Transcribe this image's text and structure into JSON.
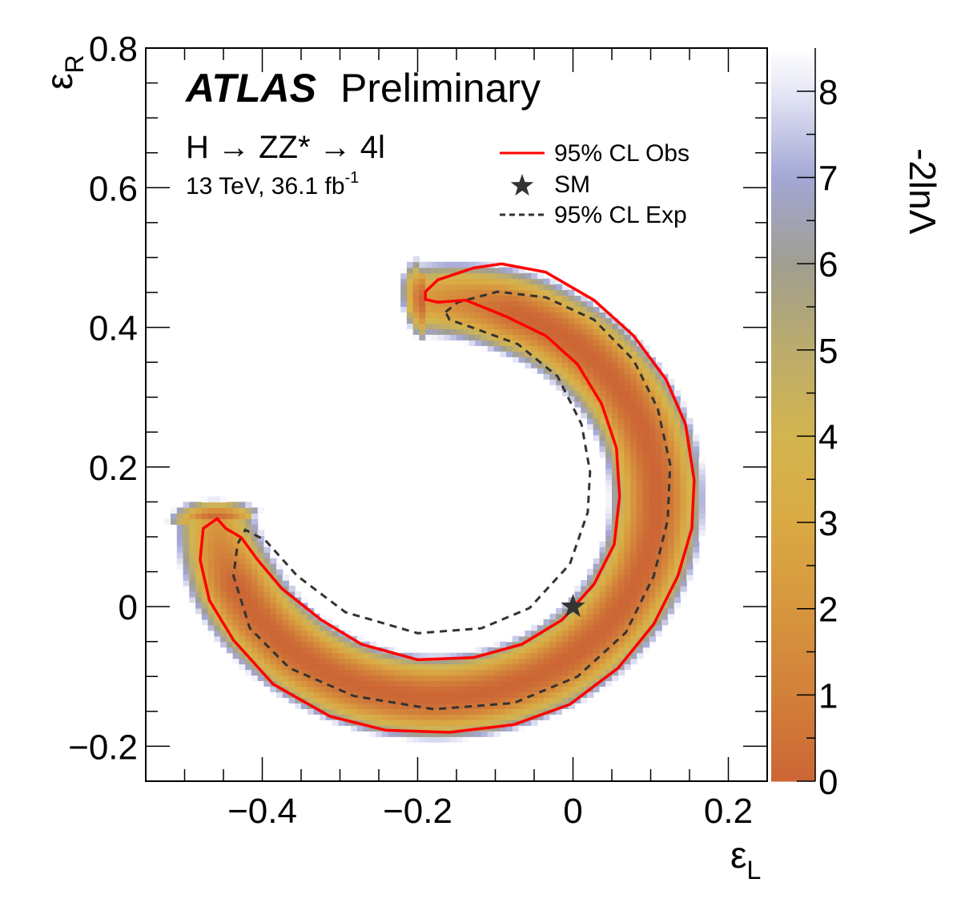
{
  "chart_data": {
    "type": "heatmap",
    "title": "",
    "atlas_label": "ATLAS",
    "atlas_sublabel": "Preliminary",
    "process": "H → ZZ* → 4l",
    "energy_lumi": "13 TeV, 36.1 fb",
    "lumi_exponent": "-1",
    "xlabel": "ε",
    "xlabel_sub": "L",
    "ylabel": "ε",
    "ylabel_sub": "R",
    "zlabel": "-2lnΛ",
    "xlim": [
      -0.55,
      0.25
    ],
    "ylim": [
      -0.25,
      0.8
    ],
    "zlim": [
      0,
      8.5
    ],
    "xticks": [
      -0.4,
      -0.2,
      0,
      0.2
    ],
    "xtick_labels": [
      "−0.4",
      "−0.2",
      "0",
      "0.2"
    ],
    "yticks": [
      -0.2,
      0,
      0.2,
      0.4,
      0.6,
      0.8
    ],
    "ytick_labels": [
      "−0.2",
      "0",
      "0.2",
      "0.4",
      "0.6",
      "0.8"
    ],
    "zticks": [
      0,
      1,
      2,
      3,
      4,
      5,
      6,
      7,
      8
    ],
    "ztick_labels": [
      "0",
      "1",
      "2",
      "3",
      "4",
      "5",
      "6",
      "7",
      "8"
    ],
    "legend": {
      "placement": "top-right",
      "entries": [
        {
          "label": "95% CL Obs",
          "style": "solid",
          "color": "#ff0000"
        },
        {
          "label": "SM",
          "style": "star",
          "color": "#333333"
        },
        {
          "label": "95% CL Exp",
          "style": "dashed",
          "color": "#333333"
        }
      ]
    },
    "sm_point": {
      "x": 0,
      "y": 0
    },
    "obs_contour_95": [
      [
        -0.19,
        0.451
      ],
      [
        -0.174,
        0.468
      ],
      [
        -0.128,
        0.485
      ],
      [
        -0.092,
        0.491
      ],
      [
        -0.035,
        0.479
      ],
      [
        0.027,
        0.439
      ],
      [
        0.078,
        0.388
      ],
      [
        0.12,
        0.325
      ],
      [
        0.145,
        0.261
      ],
      [
        0.156,
        0.181
      ],
      [
        0.153,
        0.112
      ],
      [
        0.135,
        0.044
      ],
      [
        0.104,
        -0.025
      ],
      [
        0.058,
        -0.088
      ],
      [
        -0.004,
        -0.14
      ],
      [
        -0.076,
        -0.169
      ],
      [
        -0.159,
        -0.18
      ],
      [
        -0.241,
        -0.177
      ],
      [
        -0.313,
        -0.157
      ],
      [
        -0.386,
        -0.111
      ],
      [
        -0.437,
        -0.048
      ],
      [
        -0.468,
        0.009
      ],
      [
        -0.48,
        0.067
      ],
      [
        -0.476,
        0.112
      ],
      [
        -0.458,
        0.126
      ],
      [
        -0.447,
        0.112
      ],
      [
        -0.427,
        0.099
      ],
      [
        -0.406,
        0.067
      ],
      [
        -0.375,
        0.026
      ],
      [
        -0.324,
        -0.019
      ],
      [
        -0.272,
        -0.054
      ],
      [
        -0.2,
        -0.076
      ],
      [
        -0.128,
        -0.073
      ],
      [
        -0.066,
        -0.054
      ],
      [
        -0.014,
        -0.019
      ],
      [
        0.027,
        0.032
      ],
      [
        0.053,
        0.089
      ],
      [
        0.06,
        0.158
      ],
      [
        0.056,
        0.227
      ],
      [
        0.037,
        0.29
      ],
      [
        0.006,
        0.347
      ],
      [
        -0.035,
        0.388
      ],
      [
        -0.087,
        0.416
      ],
      [
        -0.138,
        0.439
      ],
      [
        -0.174,
        0.436
      ],
      [
        -0.19,
        0.44
      ]
    ],
    "exp_contour_95": [
      [
        -0.164,
        0.422
      ],
      [
        -0.148,
        0.436
      ],
      [
        -0.097,
        0.451
      ],
      [
        -0.035,
        0.443
      ],
      [
        0.027,
        0.411
      ],
      [
        0.078,
        0.353
      ],
      [
        0.109,
        0.284
      ],
      [
        0.125,
        0.204
      ],
      [
        0.122,
        0.124
      ],
      [
        0.104,
        0.044
      ],
      [
        0.068,
        -0.037
      ],
      [
        0.006,
        -0.1
      ],
      [
        -0.076,
        -0.138
      ],
      [
        -0.179,
        -0.147
      ],
      [
        -0.282,
        -0.128
      ],
      [
        -0.365,
        -0.088
      ],
      [
        -0.416,
        -0.031
      ],
      [
        -0.437,
        0.044
      ],
      [
        -0.432,
        0.089
      ],
      [
        -0.422,
        0.11
      ],
      [
        -0.396,
        0.095
      ],
      [
        -0.355,
        0.044
      ],
      [
        -0.293,
        -0.008
      ],
      [
        -0.2,
        -0.038
      ],
      [
        -0.118,
        -0.031
      ],
      [
        -0.056,
        -0.002
      ],
      [
        -0.004,
        0.061
      ],
      [
        0.019,
        0.135
      ],
      [
        0.022,
        0.193
      ],
      [
        0.011,
        0.261
      ],
      [
        -0.02,
        0.33
      ],
      [
        -0.071,
        0.376
      ],
      [
        -0.128,
        0.399
      ],
      [
        -0.159,
        0.411
      ],
      [
        -0.164,
        0.422
      ]
    ],
    "colormap": [
      {
        "z": 0,
        "color": "#cc6635"
      },
      {
        "z": 1,
        "color": "#d2803a"
      },
      {
        "z": 2,
        "color": "#d7963e"
      },
      {
        "z": 3,
        "color": "#d9aa44"
      },
      {
        "z": 4,
        "color": "#d3b44f"
      },
      {
        "z": 5,
        "color": "#bcac6c"
      },
      {
        "z": 6,
        "color": "#a09e90"
      },
      {
        "z": 7,
        "color": "#a3a7d5"
      },
      {
        "z": 8,
        "color": "#e6e7f6"
      },
      {
        "z": 8.5,
        "color": "#ffffff"
      }
    ]
  }
}
